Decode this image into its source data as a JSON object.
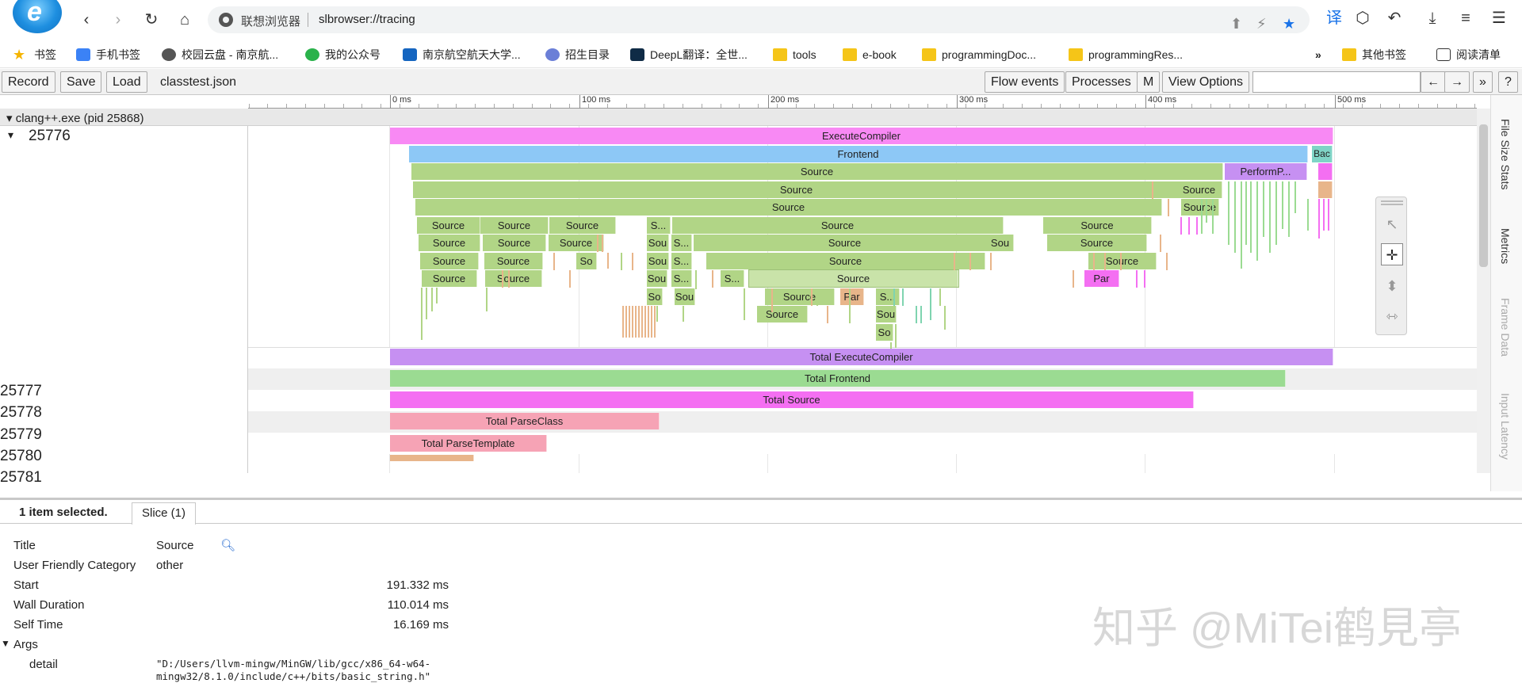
{
  "browser": {
    "site_name": "联想浏览器",
    "url": "slbrowser://tracing",
    "bookmarks": [
      {
        "label": "书签"
      },
      {
        "label": "手机书签"
      },
      {
        "label": "校园云盘 - 南京航..."
      },
      {
        "label": "我的公众号"
      },
      {
        "label": "南京航空航天大学..."
      },
      {
        "label": "招生目录"
      },
      {
        "label": "DeepL翻译：全世..."
      },
      {
        "label": "tools"
      },
      {
        "label": "e-book"
      },
      {
        "label": "programmingDoc..."
      },
      {
        "label": "programmingRes..."
      },
      {
        "label": "»"
      },
      {
        "label": "其他书签"
      },
      {
        "label": "阅读清单"
      }
    ]
  },
  "toolbar": {
    "record": "Record",
    "save": "Save",
    "load": "Load",
    "filename": "classtest.json",
    "flow_events": "Flow events",
    "processes": "Processes",
    "m": "M",
    "view_options": "View Options",
    "back": "←",
    "forward": "→",
    "more": "»",
    "help": "?"
  },
  "ruler": {
    "ticks": [
      "0 ms",
      "100 ms",
      "200 ms",
      "300 ms",
      "400 ms",
      "500 ms"
    ]
  },
  "process": {
    "title": "clang++.exe (pid 25868)",
    "close": "X"
  },
  "threads": {
    "main": "25776",
    "others": [
      "25777",
      "25778",
      "25779",
      "25780",
      "25781"
    ]
  },
  "slices": {
    "execute_compiler": "ExecuteCompiler",
    "frontend": "Frontend",
    "bac": "Bac",
    "source": "Source",
    "perform": "PerformP...",
    "s_short": "S...",
    "sou": "Sou",
    "so": "So",
    "par": "Par",
    "total_execute": "Total ExecuteCompiler",
    "total_frontend": "Total Frontend",
    "total_source": "Total Source",
    "total_parseclass": "Total ParseClass",
    "total_parsetemplate": "Total ParseTemplate"
  },
  "side_tabs": [
    "File Size Stats",
    "Metrics",
    "Frame Data",
    "Input Latency"
  ],
  "details": {
    "selected": "1 item selected.",
    "tab": "Slice (1)",
    "rows": {
      "title_label": "Title",
      "title_value": "Source",
      "category_label": "User Friendly Category",
      "category_value": "other",
      "start_label": "Start",
      "start_value": "191.332 ms",
      "wall_label": "Wall Duration",
      "wall_value": "110.014 ms",
      "self_label": "Self Time",
      "self_value": "16.169 ms",
      "args_label": "Args",
      "detail_label": "detail",
      "detail_line1": "\"D:/Users/llvm-mingw/MinGW/lib/gcc/x86_64-w64-",
      "detail_line2": "mingw32/8.1.0/include/c++/bits/basic_string.h\""
    }
  },
  "watermark": "知乎 @MiTei鹤見亭"
}
